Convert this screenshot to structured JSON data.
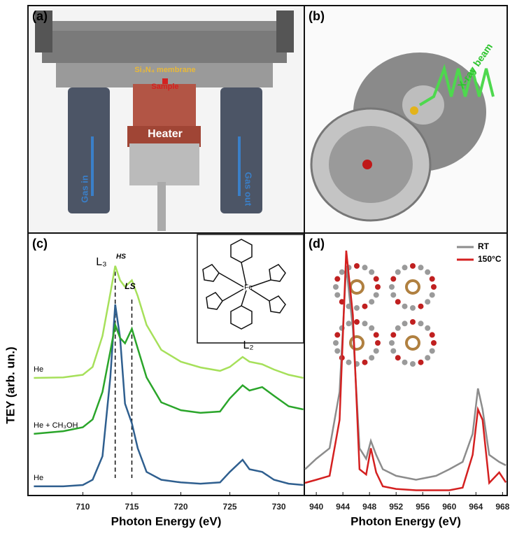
{
  "diagrams": {
    "a": {
      "panel_label": "(a)",
      "membrane": "Si₃N₄ membrane",
      "sample": "Sample",
      "heater": "Heater",
      "gas_in": "Gas in",
      "gas_out": "Gas out"
    },
    "b": {
      "panel_label": "(b)",
      "beam": "X-ray beam"
    }
  },
  "chart_data": [
    {
      "type": "line",
      "panel_label": "(c)",
      "x_label": "Photon Energy (eV)",
      "y_label": "TEY (arb. un.)",
      "xlim": [
        704.4,
        732.6
      ],
      "ylim": [
        0,
        100
      ],
      "xticks": [
        710,
        715,
        720,
        725,
        730
      ],
      "x": [
        705,
        708,
        710,
        711,
        712,
        712.8,
        713.3,
        713.8,
        714.3,
        715,
        715.6,
        716.5,
        718,
        720,
        722,
        724,
        725,
        726.3,
        727,
        728.3,
        729.5,
        731,
        732.5
      ],
      "series": [
        {
          "name": "He",
          "color": "#2f5f8f",
          "values": [
            3.5,
            3.5,
            4,
            6,
            15,
            45,
            72.8,
            60,
            35,
            27.5,
            18,
            9,
            6,
            5,
            4.5,
            5,
            9,
            13.6,
            10,
            9,
            6,
            4.5,
            4
          ]
        },
        {
          "name": "He + CH₃OH",
          "color": "#2aa52a",
          "values": [
            23.5,
            24.5,
            26,
            29,
            39.5,
            55,
            65,
            60,
            58,
            63.5,
            56,
            45,
            35.5,
            32.5,
            31.5,
            32,
            37,
            42,
            40,
            41.3,
            38,
            34,
            32.8
          ]
        },
        {
          "name": "He",
          "color": "#a6e05a",
          "values": [
            44.8,
            45,
            46,
            49,
            60.8,
            77,
            87.5,
            82,
            79.5,
            82,
            76,
            65,
            55.5,
            51,
            48.8,
            47.5,
            49,
            52.8,
            51,
            50,
            48,
            46,
            44.8
          ]
        }
      ],
      "vlines": [
        713.3,
        715
      ],
      "annotations": [
        "L₃",
        "HS",
        "LS",
        "L₂"
      ],
      "inset_label": "Fe"
    },
    {
      "type": "line",
      "panel_label": "(d)",
      "x_label": "Photon Energy (eV)",
      "xlim": [
        938.2,
        968.7
      ],
      "ylim": [
        0,
        100
      ],
      "xticks": [
        940,
        944,
        948,
        952,
        956,
        960,
        964,
        968
      ],
      "legend": "top-right",
      "x": [
        938.3,
        940,
        942,
        943.5,
        944.5,
        945.5,
        946.5,
        947.5,
        948.2,
        949,
        950,
        952,
        955,
        958,
        960,
        962,
        963.5,
        964.3,
        965,
        966,
        967.5,
        968.5
      ],
      "series": [
        {
          "name": "RT",
          "color": "#8c8c8c",
          "values": [
            10,
            14,
            18,
            39.5,
            87.5,
            63.5,
            18,
            14,
            20.8,
            15.5,
            10,
            7.5,
            6,
            7.5,
            10,
            12.8,
            23.5,
            40.8,
            32.8,
            15.5,
            12.8,
            11.5
          ]
        },
        {
          "name": "150°C",
          "color": "#d42020",
          "values": [
            4.8,
            6,
            7.5,
            28.8,
            93.3,
            68.8,
            10,
            8,
            18,
            8.8,
            3.5,
            2.5,
            2,
            2,
            2,
            3,
            15.5,
            32.8,
            28.8,
            4.8,
            8.8,
            5
          ]
        }
      ]
    }
  ]
}
